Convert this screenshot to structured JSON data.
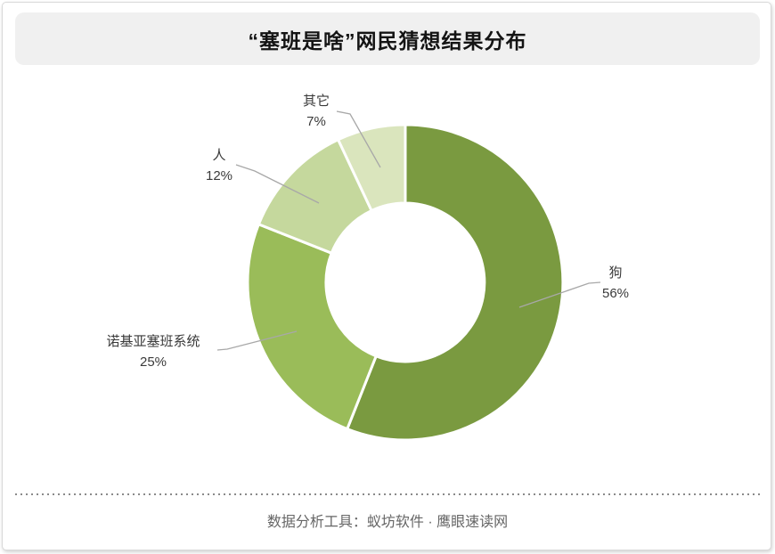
{
  "card": {
    "title": "“塞班是啥”网民猜想结果分布",
    "footer": "数据分析工具：蚁坊软件 · 鹰眼速读网"
  },
  "chart_data": {
    "type": "pie",
    "subtype": "donut",
    "title": "“塞班是啥”网民猜想结果分布",
    "unit": "%",
    "start_angle_deg": 0,
    "direction": "clockwise",
    "donut_hole_ratio": 0.5,
    "labels_position": "outside-with-leader-lines",
    "legend": "none",
    "slices": [
      {
        "name": "狗",
        "value": 56,
        "percent_label": "56%",
        "color": "#7a9a40"
      },
      {
        "name": "诺基亚塞班系统",
        "value": 25,
        "percent_label": "25%",
        "color": "#9abc59"
      },
      {
        "name": "人",
        "value": 12,
        "percent_label": "12%",
        "color": "#c5d89d"
      },
      {
        "name": "其它",
        "value": 7,
        "percent_label": "7%",
        "color": "#dae5bd"
      }
    ],
    "leader_line_color": "#a8a8a8",
    "label_color": "#3a3a3a",
    "title_bg_color": "#f0f0f0",
    "slice_gap_color": "#ffffff"
  }
}
